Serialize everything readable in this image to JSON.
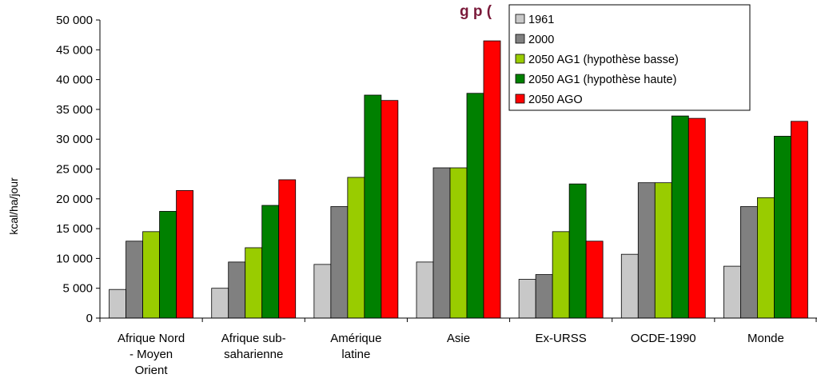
{
  "chart_data": {
    "type": "bar",
    "title_visible_fragment": "g    p                (",
    "ylabel": "kcal/ha/jour",
    "xlabel": "",
    "ylim": [
      0,
      50000
    ],
    "yticks": [
      "0",
      "5 000",
      "10 000",
      "15 000",
      "20 000",
      "25 000",
      "30 000",
      "35 000",
      "40 000",
      "45 000",
      "50 000"
    ],
    "categories": [
      [
        "Afrique Nord",
        "- Moyen",
        "Orient"
      ],
      [
        "Afrique sub-",
        "saharienne"
      ],
      [
        "Amérique",
        "latine"
      ],
      [
        "Asie"
      ],
      [
        "Ex-URSS"
      ],
      [
        "OCDE-1990"
      ],
      [
        "Monde"
      ]
    ],
    "series": [
      {
        "name": "1961",
        "color": "#c8c8c8",
        "values": [
          4800,
          5000,
          9000,
          9400,
          6500,
          10700,
          8700
        ]
      },
      {
        "name": "2000",
        "color": "#808080",
        "values": [
          12900,
          9400,
          18700,
          25200,
          7300,
          22700,
          18700
        ]
      },
      {
        "name": "2050 AG1 (hypothèse basse)",
        "color": "#99cc00",
        "values": [
          14500,
          11800,
          23600,
          25200,
          14500,
          22700,
          20200
        ]
      },
      {
        "name": "2050 AG1 (hypothèse haute)",
        "color": "#008000",
        "values": [
          17900,
          18900,
          37400,
          37700,
          22500,
          33900,
          30500
        ]
      },
      {
        "name": "2050 AGO",
        "color": "#ff0000",
        "values": [
          21400,
          23200,
          36500,
          46500,
          12900,
          33500,
          33000
        ]
      }
    ],
    "grid": false,
    "legend_position": "top-right"
  }
}
